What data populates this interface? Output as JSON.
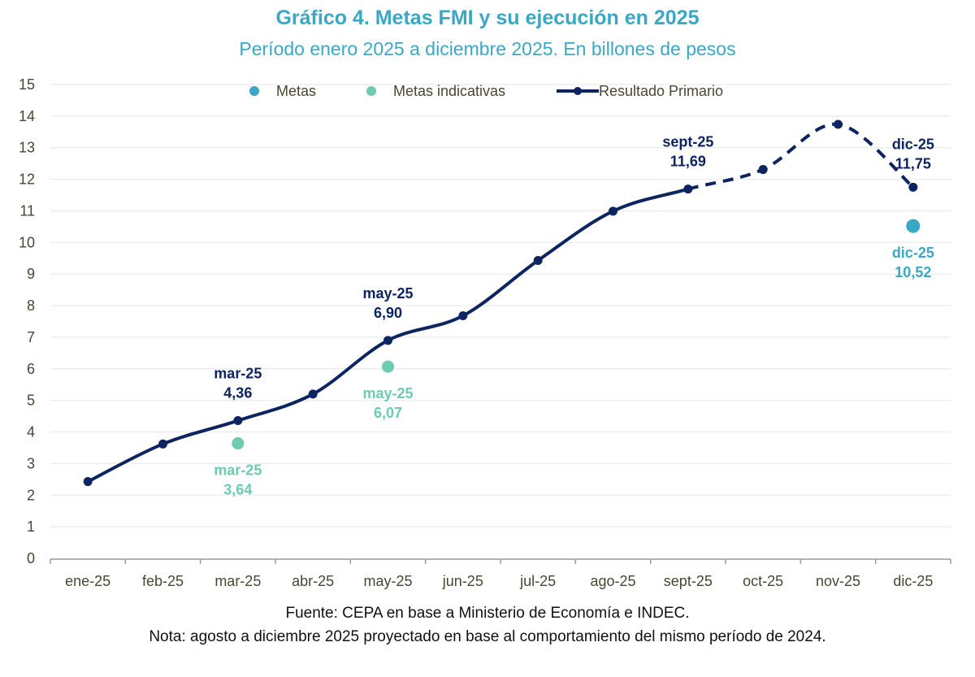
{
  "header": {
    "title": "Gráfico 4. Metas FMI y su ejecución en 2025",
    "subtitle": "Período enero 2025 a diciembre 2025. En billones de pesos"
  },
  "footer": {
    "source": "Fuente: CEPA en base a Ministerio de Economía e INDEC.",
    "note": "Nota: agosto a diciembre 2025 proyectado en base al comportamiento del mismo período de 2024."
  },
  "colors": {
    "title": "#3aa7c4",
    "resultado": "#0c2460",
    "metas": "#3aa7c4",
    "metas_indicativas": "#6ccbb0",
    "grid": "#eeeeee",
    "axis": "#9a9a9a",
    "tick_text": "#4a4632"
  },
  "chart_data": {
    "type": "line",
    "title": "Gráfico 4. Metas FMI y su ejecución en 2025",
    "subtitle": "Período enero 2025 a diciembre 2025. En billones de pesos",
    "xlabel": "",
    "ylabel": "",
    "ylim": [
      0,
      15
    ],
    "yticks": [
      "0",
      "1",
      "2",
      "3",
      "4",
      "5",
      "6",
      "7",
      "8",
      "9",
      "10",
      "11",
      "12",
      "13",
      "14",
      "15"
    ],
    "grid": true,
    "legend_position": "top-center",
    "categories": [
      "ene-25",
      "feb-25",
      "mar-25",
      "abr-25",
      "may-25",
      "jun-25",
      "jul-25",
      "ago-25",
      "sept-25",
      "oct-25",
      "nov-25",
      "dic-25"
    ],
    "series": [
      {
        "name": "Resultado Primario",
        "kind": "line",
        "values": [
          2.43,
          3.62,
          4.36,
          5.2,
          6.9,
          7.68,
          9.43,
          10.99,
          11.69,
          12.31,
          13.74,
          11.75
        ],
        "projected_from_index": 8,
        "labels": [
          {
            "index": 2,
            "category": "mar-25",
            "value": "4,36"
          },
          {
            "index": 4,
            "category": "may-25",
            "value": "6,90"
          },
          {
            "index": 8,
            "category": "sept-25",
            "value": "11,69"
          },
          {
            "index": 11,
            "category": "dic-25",
            "value": "11,75"
          }
        ]
      },
      {
        "name": "Metas indicativas",
        "kind": "scatter",
        "points": [
          {
            "category": "mar-25",
            "index": 2,
            "value": 3.64,
            "label": "3,64"
          },
          {
            "category": "may-25",
            "index": 4,
            "value": 6.07,
            "label": "6,07"
          }
        ]
      },
      {
        "name": "Metas",
        "kind": "scatter",
        "points": [
          {
            "category": "dic-25",
            "index": 11,
            "value": 10.52,
            "label": "10,52"
          }
        ]
      }
    ],
    "legend": [
      "Metas",
      "Metas indicativas",
      "Resultado Primario"
    ]
  }
}
